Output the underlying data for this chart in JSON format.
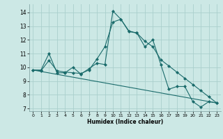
{
  "xlabel": "Humidex (Indice chaleur)",
  "background_color": "#cce8e5",
  "grid_color": "#aacfcc",
  "line_color": "#1a6b6b",
  "xlim": [
    -0.5,
    23.5
  ],
  "ylim": [
    6.8,
    14.6
  ],
  "yticks": [
    7,
    8,
    9,
    10,
    11,
    12,
    13,
    14
  ],
  "xticks": [
    0,
    1,
    2,
    3,
    4,
    5,
    6,
    7,
    8,
    9,
    10,
    11,
    12,
    13,
    14,
    15,
    16,
    17,
    18,
    19,
    20,
    21,
    22,
    23
  ],
  "line1_x": [
    0,
    1,
    2,
    3,
    4,
    5,
    6,
    7,
    8,
    9,
    10,
    11,
    12,
    13,
    14,
    15,
    16,
    17,
    18,
    19,
    20,
    21,
    22,
    23
  ],
  "line1_y": [
    9.8,
    9.8,
    11.0,
    9.6,
    9.6,
    10.0,
    9.5,
    9.9,
    10.3,
    10.2,
    14.1,
    13.5,
    12.6,
    12.5,
    11.5,
    12.0,
    10.2,
    8.4,
    8.6,
    8.6,
    7.5,
    7.1,
    7.5,
    7.4
  ],
  "line2_x": [
    0,
    1,
    2,
    3,
    4,
    5,
    6,
    7,
    8,
    9,
    10,
    11,
    12,
    13,
    14,
    15,
    16,
    17,
    18,
    19,
    20,
    21,
    22,
    23
  ],
  "line2_y": [
    9.8,
    9.75,
    10.5,
    9.75,
    9.65,
    9.6,
    9.55,
    9.8,
    10.6,
    11.5,
    13.3,
    13.5,
    12.65,
    12.5,
    11.9,
    11.5,
    10.55,
    10.1,
    9.65,
    9.2,
    8.75,
    8.3,
    7.85,
    7.4
  ],
  "line3_x": [
    0,
    23
  ],
  "line3_y": [
    9.8,
    7.4
  ]
}
